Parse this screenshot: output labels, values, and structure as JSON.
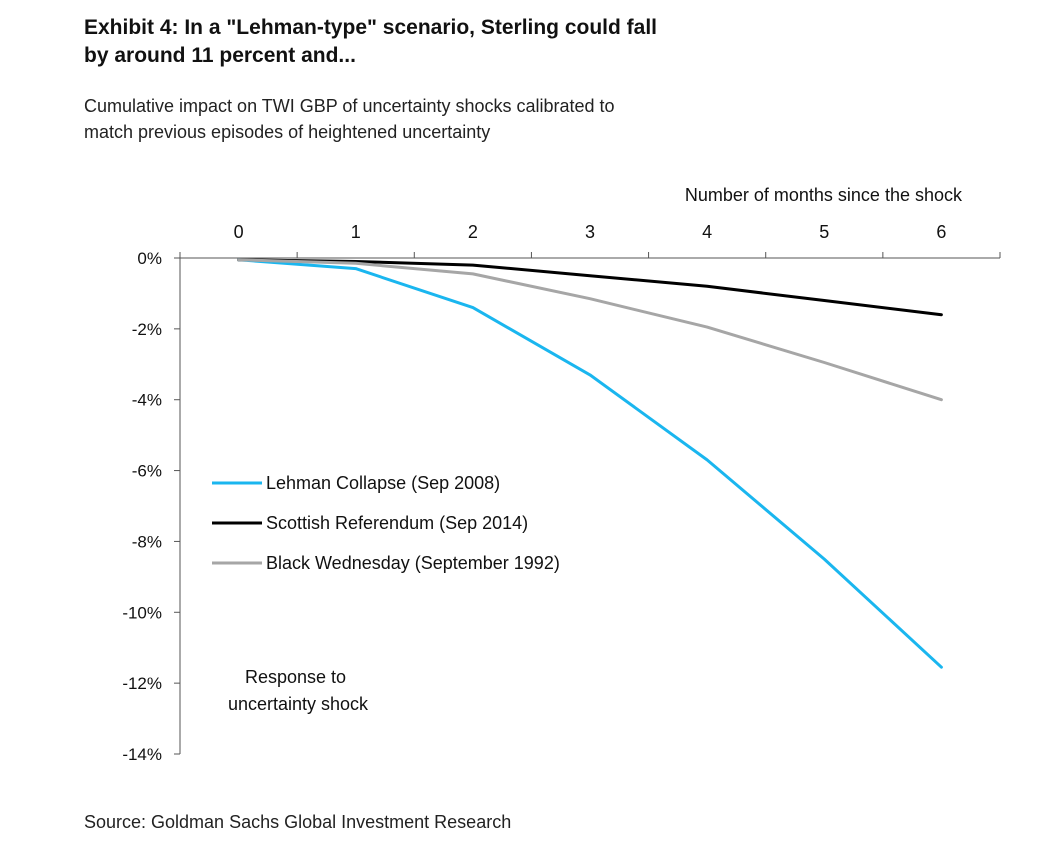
{
  "header": {
    "title_line1": "Exhibit 4: In a \"Lehman-type\" scenario, Sterling could fall",
    "title_line2": "by around 11 percent and...",
    "subtitle_line1": "Cumulative impact on TWI GBP of uncertainty shocks calibrated to",
    "subtitle_line2": "match previous episodes of heightened uncertainty"
  },
  "footer": {
    "source": "Source:  Goldman Sachs Global Investment Research"
  },
  "chart_data": {
    "type": "line",
    "title": "Exhibit 4: In a \"Lehman-type\" scenario, Sterling could fall by around 11 percent and...",
    "subtitle": "Cumulative impact on TWI GBP of uncertainty shocks calibrated to match previous episodes of heightened uncertainty",
    "xlabel": "Number of months since the shock",
    "ylabel_annotation": "Response to uncertainty shock",
    "x": [
      0,
      1,
      2,
      3,
      4,
      5,
      6
    ],
    "x_tick_labels": [
      "0",
      "1",
      "2",
      "3",
      "4",
      "5",
      "6"
    ],
    "xlim": [
      -0.5,
      6.5
    ],
    "x_axis_position": "top",
    "ylim": [
      -14,
      0
    ],
    "y_ticks": [
      0,
      -2,
      -4,
      -6,
      -8,
      -10,
      -12,
      -14
    ],
    "y_tick_labels": [
      "0%",
      "-2%",
      "-4%",
      "-6%",
      "-8%",
      "-10%",
      "-12%",
      "-14%"
    ],
    "grid": false,
    "legend_position": "bottom-left",
    "series": [
      {
        "name": "Lehman Collapse (Sep 2008)",
        "color": "#1ab6ef",
        "values": [
          -0.05,
          -0.3,
          -1.4,
          -3.3,
          -5.7,
          -8.5,
          -11.55
        ]
      },
      {
        "name": "Scottish Referendum (Sep 2014)",
        "color": "#000000",
        "values": [
          -0.05,
          -0.1,
          -0.2,
          -0.5,
          -0.8,
          -1.2,
          -1.6
        ]
      },
      {
        "name": "Black Wednesday (September 1992)",
        "color": "#a6a6a6",
        "values": [
          -0.05,
          -0.15,
          -0.45,
          -1.15,
          -1.95,
          -2.95,
          -4.0
        ]
      }
    ]
  }
}
